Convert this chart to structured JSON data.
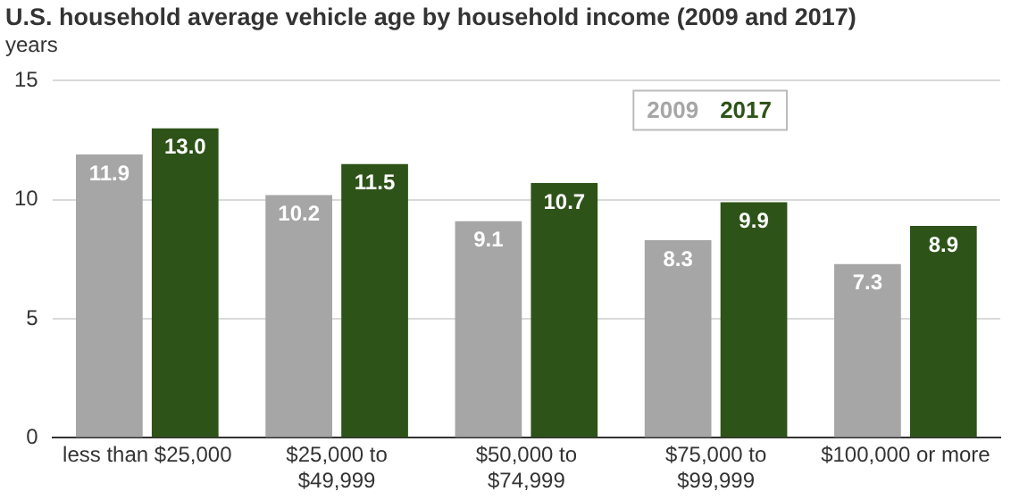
{
  "chart_data": {
    "type": "bar",
    "title": "U.S. household average vehicle age by household income (2009 and 2017)",
    "ylabel": "years",
    "categories": [
      "less than $25,000",
      "$25,000 to $49,999",
      "$50,000 to $74,999",
      "$75,000 to $99,999",
      "$100,000 or more"
    ],
    "series": [
      {
        "name": "2009",
        "color": "#a6a6a6",
        "values": [
          11.9,
          10.2,
          9.1,
          8.3,
          7.3
        ],
        "value_labels": [
          "11.9",
          "10.2",
          "9.1",
          "8.3",
          "7.3"
        ]
      },
      {
        "name": "2017",
        "color": "#2e5319",
        "values": [
          13.0,
          11.5,
          10.7,
          9.9,
          8.9
        ],
        "value_labels": [
          "13.0",
          "11.5",
          "10.7",
          "9.9",
          "8.9"
        ]
      }
    ],
    "ylim": [
      0,
      15
    ],
    "yticks": [
      0,
      5,
      10,
      15
    ],
    "grid": "y",
    "legend": "top right"
  }
}
